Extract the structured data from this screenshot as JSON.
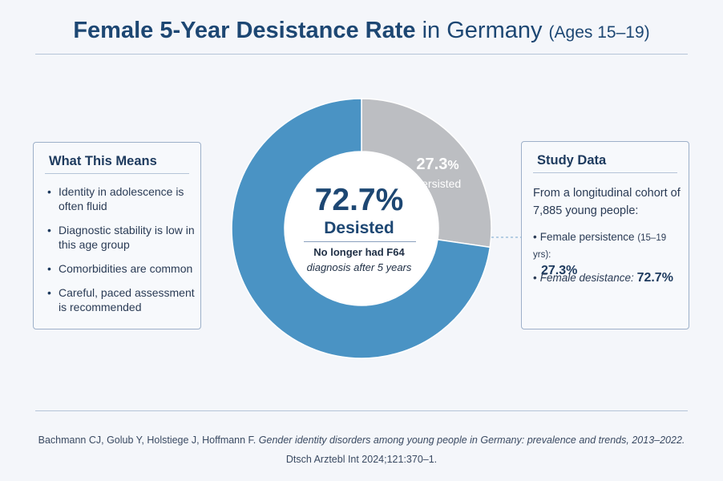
{
  "title": {
    "bold": "Female 5-Year Desistance Rate",
    "regular": "in Germany",
    "sub": "(Ages 15–19)"
  },
  "left_card": {
    "title": "What This Means",
    "items": [
      "Identity in adolescence is often fluid",
      "Diagnostic stability is low in this age group",
      "Comorbidities are common",
      "Careful, paced assessment is recommended"
    ]
  },
  "right_card": {
    "title": "Study Data",
    "intro": "From a longitudinal cohort of 7,885 young people:",
    "persistence_label": "Female persistence",
    "persistence_age": "(15–19 yrs):",
    "persistence_value": "27.3%",
    "desistance_label": "Female desistance:",
    "desistance_value": "72.7%"
  },
  "center": {
    "pct": "72.7%",
    "label": "Desisted",
    "note_line1": "No longer had F64",
    "note_line2": "diagnosis after 5 years"
  },
  "slice_label": {
    "number": "27.3",
    "sign": "%",
    "text": "Persisted"
  },
  "citation": {
    "authors": "Bachmann CJ, Golub Y, Holstiege J, Hoffmann F.",
    "article": "Gender identity disorders among young people in Germany: prevalence and trends, 2013–2022.",
    "journal": "Dtsch Arztebl Int 2024;121:370–1."
  },
  "chart_data": {
    "type": "pie",
    "title": "Female 5-Year Desistance Rate in Germany (Ages 15–19)",
    "slices": [
      {
        "name": "Persisted",
        "value": 27.3,
        "color": "#bcbec2"
      },
      {
        "name": "Desisted",
        "value": 72.7,
        "color": "#4a93c4"
      }
    ],
    "start_angle_deg": 0,
    "direction": "clockwise",
    "donut": true
  }
}
